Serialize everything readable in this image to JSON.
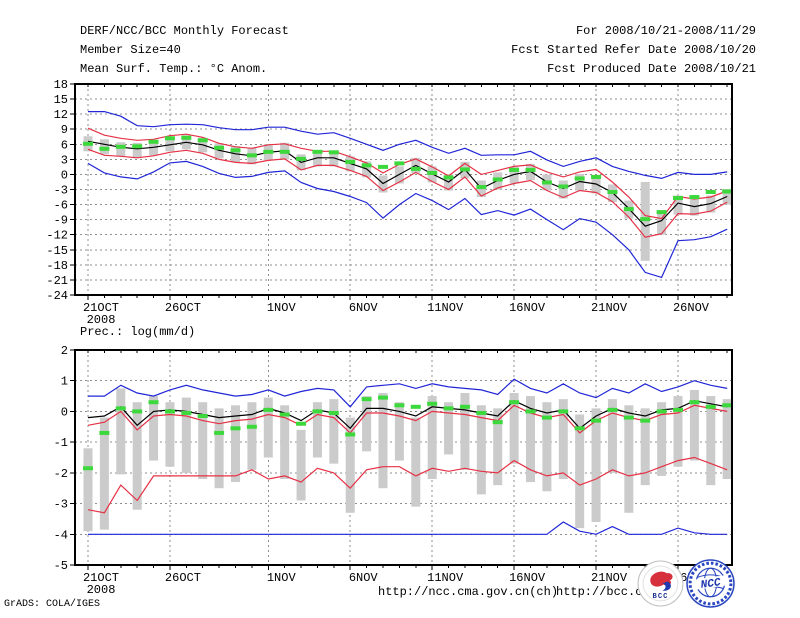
{
  "header": {
    "title": "DERF/NCC/BCC Monthly Forecast",
    "member_size": "Member Size=40",
    "for_range": "For 2008/10/21-2008/11/29",
    "fcst_started": "Fcst Started Refer Date 2008/10/20",
    "fcst_produced": "Fcst Produced Date 2008/10/21"
  },
  "footer": {
    "watermark": "GrADS: COLA/IGES",
    "url_ncc": "http://ncc.cma.gov.cn(ch)",
    "url_bcc": "http://bcc.c",
    "bcc_logo_text": "BCC",
    "ncc_logo_text": "NCC"
  },
  "colors": {
    "blue": "#2026d6",
    "red": "#e63145",
    "green": "#3cd83c",
    "black": "#000000",
    "gray": "#cbcbcb",
    "grid": "#8f8f8f",
    "logo_navy": "#1c2f8f",
    "logo_blue": "#2a46c0"
  },
  "chart_data": [
    {
      "type": "line",
      "title": "Mean Surf. Temp.: °C Anom.",
      "ylabel": "°C anomaly",
      "ylim": [
        -24,
        18
      ],
      "yticks": [
        18,
        15,
        12,
        9,
        6,
        3,
        0,
        -3,
        -6,
        -9,
        -12,
        -15,
        -18,
        -21,
        -24
      ],
      "n_days": 40,
      "x_tick_days": [
        1,
        6,
        12,
        17,
        22,
        27,
        32,
        37
      ],
      "x_tick_labels": [
        "21OCT",
        "26OCT",
        "1NOV",
        "6NOV",
        "11NOV",
        "16NOV",
        "21NOV",
        "26NOV"
      ],
      "x_sub_label": "2008",
      "grid": "dotted",
      "series": [
        {
          "name": "ensemble-max",
          "type": "line",
          "color": "blue",
          "values": [
            12.5,
            12.5,
            11.6,
            9.7,
            9.5,
            9.9,
            10.0,
            9.9,
            9.3,
            8.9,
            8.9,
            9.4,
            9.4,
            8.6,
            8.0,
            8.3,
            7.2,
            6.0,
            4.8,
            6.0,
            6.8,
            5.4,
            4.2,
            5.2,
            3.8,
            3.9,
            3.9,
            4.6,
            2.9,
            1.6,
            2.6,
            3.3,
            1.6,
            0.6,
            -0.2,
            -0.8,
            0.4,
            0.0,
            0.0,
            0.5
          ]
        },
        {
          "name": "ensemble-min",
          "type": "line",
          "color": "blue",
          "values": [
            2.2,
            0.3,
            -0.5,
            -0.9,
            0.5,
            2.3,
            2.6,
            1.6,
            0.2,
            -0.6,
            -0.4,
            0.4,
            0.7,
            -1.6,
            -2.8,
            -3.4,
            -4.4,
            -5.6,
            -8.7,
            -6.0,
            -3.8,
            -5.2,
            -7.0,
            -4.8,
            -8.0,
            -7.2,
            -8.1,
            -6.9,
            -9.0,
            -11.0,
            -8.8,
            -9.5,
            -12.0,
            -15.0,
            -19.5,
            -20.5,
            -13.2,
            -13.0,
            -12.4,
            -10.9
          ]
        },
        {
          "name": "upper-bound",
          "type": "line",
          "color": "red",
          "values": [
            9.2,
            7.8,
            7.2,
            6.8,
            7.0,
            7.7,
            8.0,
            7.4,
            6.2,
            5.5,
            5.2,
            5.9,
            6.1,
            5.2,
            4.6,
            4.6,
            3.5,
            2.3,
            0.3,
            2.0,
            3.1,
            1.5,
            -0.3,
            2.2,
            0.0,
            0.8,
            1.6,
            1.9,
            0.5,
            -0.5,
            0.5,
            1.0,
            -1.5,
            -4.5,
            -8.2,
            -8.8,
            -4.4,
            -4.9,
            -4.5,
            -3.3
          ]
        },
        {
          "name": "lower-bound",
          "type": "line",
          "color": "red",
          "values": [
            5.0,
            3.8,
            3.6,
            3.3,
            3.7,
            4.4,
            4.8,
            4.2,
            3.0,
            2.4,
            2.2,
            2.8,
            3.1,
            0.9,
            1.8,
            1.8,
            0.8,
            -0.4,
            -3.2,
            -1.5,
            0.4,
            -1.4,
            -3.0,
            -0.5,
            -4.3,
            -2.7,
            -1.8,
            -1.2,
            -3.2,
            -4.6,
            -3.2,
            -3.6,
            -5.4,
            -8.5,
            -12.5,
            -11.8,
            -7.8,
            -7.9,
            -7.3,
            -5.5
          ]
        },
        {
          "name": "ensemble-mean",
          "type": "line",
          "color": "black",
          "values": [
            6.6,
            6.0,
            5.4,
            5.1,
            5.4,
            5.9,
            6.4,
            5.9,
            4.8,
            4.1,
            3.7,
            4.4,
            4.7,
            2.4,
            3.3,
            3.3,
            2.2,
            1.1,
            -1.8,
            0.0,
            1.8,
            0.1,
            -1.5,
            1.0,
            -2.8,
            -1.2,
            0.0,
            0.6,
            -1.5,
            -2.8,
            -1.4,
            -1.9,
            -3.6,
            -6.8,
            -10.3,
            -9.2,
            -5.7,
            -6.4,
            -5.8,
            -4.4
          ]
        },
        {
          "name": "observation",
          "type": "dashes",
          "color": "green",
          "values": [
            6.1,
            5.1,
            5.5,
            5.6,
            6.5,
            7.2,
            7.3,
            6.8,
            5.3,
            4.8,
            3.8,
            4.5,
            4.5,
            3.1,
            4.5,
            4.4,
            2.5,
            1.8,
            1.5,
            2.2,
            1.1,
            0.3,
            -0.6,
            1.0,
            -2.5,
            -1.0,
            0.9,
            0.9,
            -1.6,
            -2.4,
            -0.8,
            -0.5,
            -3.5,
            -6.9,
            -8.9,
            -7.5,
            -4.7,
            -4.5,
            -3.5,
            -3.4
          ]
        },
        {
          "name": "member-spread",
          "type": "bars",
          "color": "gray",
          "hi": [
            7.6,
            7.0,
            6.4,
            6.3,
            6.6,
            7.3,
            7.8,
            7.3,
            6.2,
            5.6,
            5.3,
            6.0,
            6.3,
            4.0,
            4.8,
            4.8,
            3.6,
            2.6,
            -0.2,
            1.6,
            3.3,
            1.6,
            0.0,
            2.5,
            -1.2,
            0.4,
            1.5,
            2.1,
            0.0,
            -1.2,
            0.1,
            -0.3,
            -2.0,
            -5.2,
            -1.5,
            -7.5,
            -4.2,
            -4.8,
            -4.2,
            -2.9
          ],
          "lo": [
            4.6,
            4.0,
            3.6,
            3.3,
            3.8,
            4.6,
            5.0,
            4.4,
            3.2,
            2.4,
            2.0,
            2.8,
            3.0,
            0.8,
            1.6,
            1.6,
            0.6,
            -0.6,
            -3.6,
            -1.8,
            0.2,
            -1.6,
            -3.2,
            -0.8,
            -4.5,
            -3.0,
            -1.8,
            -1.1,
            -3.2,
            -4.8,
            -3.2,
            -3.8,
            -5.5,
            -8.8,
            -17.2,
            -12.0,
            -8.0,
            -8.2,
            -7.6,
            -6.0
          ]
        }
      ]
    },
    {
      "type": "line",
      "title": "Prec.: log(mm/d)",
      "ylabel": "log(mm/d)",
      "ylim": [
        -5,
        2
      ],
      "yticks": [
        2,
        1,
        0,
        -1,
        -2,
        -3,
        -4,
        -5
      ],
      "n_days": 40,
      "x_tick_days": [
        1,
        6,
        12,
        17,
        22,
        27,
        32,
        37
      ],
      "x_tick_labels": [
        "21OCT",
        "26OCT",
        "1NOV",
        "6NOV",
        "11NOV",
        "16NOV",
        "21NOV",
        "26NOV"
      ],
      "x_sub_label": "2008",
      "grid": "dotted",
      "series": [
        {
          "name": "ensemble-max",
          "type": "line",
          "color": "blue",
          "values": [
            0.5,
            0.5,
            0.85,
            0.6,
            0.5,
            0.7,
            0.85,
            0.7,
            0.6,
            0.5,
            0.55,
            0.7,
            0.5,
            0.65,
            0.75,
            0.7,
            0.15,
            0.8,
            0.85,
            0.9,
            0.75,
            0.9,
            0.8,
            0.75,
            0.7,
            0.55,
            1.05,
            0.75,
            0.6,
            0.9,
            0.6,
            0.45,
            0.75,
            0.6,
            0.9,
            0.65,
            0.8,
            1.0,
            0.85,
            0.75
          ]
        },
        {
          "name": "ensemble-min",
          "type": "line",
          "color": "blue",
          "values": [
            -4,
            -4,
            -4,
            -4,
            -4,
            -4,
            -4,
            -4,
            -4,
            -4,
            -4,
            -4,
            -4,
            -4,
            -4,
            -4,
            -4,
            -4,
            -4,
            -4,
            -4,
            -4,
            -4,
            -4,
            -4,
            -4,
            -4,
            -4,
            -4,
            -3.6,
            -3.9,
            -4,
            -3.75,
            -4,
            -4,
            -4,
            -3.8,
            -3.95,
            -4,
            -4
          ]
        },
        {
          "name": "upper-bound",
          "type": "line",
          "color": "red",
          "values": [
            -0.45,
            -0.35,
            0.0,
            -0.6,
            -0.15,
            -0.1,
            -0.15,
            -0.3,
            -0.4,
            -0.3,
            -0.25,
            -0.1,
            -0.2,
            -0.45,
            -0.1,
            -0.2,
            -0.7,
            -0.05,
            -0.05,
            -0.15,
            -0.3,
            0.0,
            -0.05,
            -0.1,
            -0.2,
            -0.3,
            0.2,
            -0.05,
            -0.2,
            -0.1,
            -0.7,
            -0.3,
            -0.05,
            -0.2,
            -0.3,
            -0.1,
            -0.05,
            0.2,
            0.1,
            0.0
          ]
        },
        {
          "name": "lower-bound",
          "type": "line",
          "color": "red",
          "values": [
            -3.2,
            -3.3,
            -2.4,
            -2.9,
            -2.1,
            -2.1,
            -2.1,
            -2.1,
            -2.1,
            -2.1,
            -1.9,
            -2.2,
            -2.1,
            -2.3,
            -1.85,
            -2.0,
            -2.5,
            -1.9,
            -1.8,
            -1.8,
            -2.1,
            -1.85,
            -1.95,
            -1.85,
            -1.95,
            -2.0,
            -1.6,
            -1.9,
            -2.1,
            -2.0,
            -2.4,
            -2.2,
            -1.9,
            -2.1,
            -2.0,
            -1.8,
            -1.6,
            -1.5,
            -1.7,
            -1.9
          ]
        },
        {
          "name": "ensemble-mean",
          "type": "line",
          "color": "black",
          "values": [
            -0.2,
            -0.15,
            0.15,
            -0.45,
            0.0,
            0.05,
            0.0,
            -0.1,
            -0.2,
            -0.15,
            -0.1,
            0.1,
            -0.05,
            -0.3,
            0.05,
            -0.05,
            -0.55,
            0.1,
            0.1,
            0.0,
            -0.15,
            0.15,
            0.1,
            0.05,
            -0.05,
            -0.15,
            0.35,
            0.1,
            -0.05,
            0.05,
            -0.55,
            -0.15,
            0.1,
            -0.05,
            -0.15,
            0.05,
            0.1,
            0.35,
            0.25,
            0.15
          ]
        },
        {
          "name": "observation",
          "type": "dashes",
          "color": "green",
          "values": [
            -1.85,
            -0.7,
            0.1,
            0.0,
            0.3,
            0.0,
            -0.05,
            -0.15,
            -0.7,
            -0.55,
            -0.5,
            0.05,
            -0.1,
            -0.4,
            0.0,
            -0.05,
            -0.75,
            0.4,
            0.45,
            0.2,
            0.15,
            0.25,
            0.1,
            0.15,
            -0.05,
            -0.35,
            0.3,
            0.0,
            -0.2,
            0.0,
            -0.55,
            -0.3,
            0.05,
            -0.2,
            -0.3,
            0.0,
            0.05,
            0.3,
            0.15,
            0.2
          ]
        },
        {
          "name": "member-spread",
          "type": "bars",
          "color": "gray",
          "hi": [
            -1.2,
            -0.2,
            0.75,
            0.3,
            0.5,
            0.3,
            0.45,
            0.3,
            0.1,
            0.2,
            0.3,
            0.45,
            0.2,
            -0.6,
            0.3,
            0.4,
            -0.2,
            0.5,
            0.6,
            0.3,
            -0.2,
            0.5,
            0.3,
            0.6,
            0.2,
            0.1,
            0.6,
            0.5,
            0.3,
            0.4,
            -0.1,
            0.1,
            0.4,
            0.2,
            0.1,
            0.3,
            0.5,
            0.7,
            0.5,
            0.4
          ],
          "lo": [
            -3.9,
            -3.85,
            -2.05,
            -3.2,
            -1.6,
            -1.8,
            -2.0,
            -2.2,
            -2.5,
            -2.3,
            -1.9,
            -1.5,
            -2.2,
            -2.9,
            -1.5,
            -1.7,
            -3.3,
            -1.3,
            -2.5,
            -1.6,
            -3.1,
            -2.2,
            -1.4,
            -1.9,
            -2.7,
            -2.4,
            -1.7,
            -2.3,
            -2.6,
            -2.2,
            -3.8,
            -3.6,
            -2.0,
            -3.3,
            -2.4,
            -2.1,
            -1.8,
            -1.6,
            -2.4,
            -2.2
          ]
        }
      ]
    }
  ]
}
